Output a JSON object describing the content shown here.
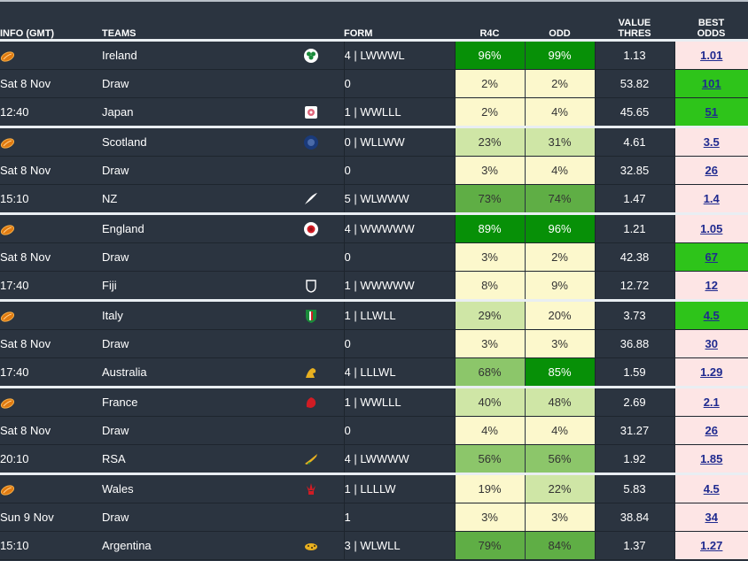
{
  "header": {
    "info": "INFO (GMT)",
    "teams": "TEAMS",
    "form": "FORM",
    "r4c": "R4C",
    "odd": "ODD",
    "value_thres_1": "VALUE",
    "value_thres_2": "THRES",
    "best_odds_1": "BEST",
    "best_odds_2": "ODDS"
  },
  "colors": {
    "background": "#2b3440",
    "best_odds_bg": "#fde5e5",
    "best_highlight": "#2ec41a",
    "pct_light": "#fcf8cc",
    "pct_pale_green": "#cfe6a6",
    "pct_mid_green": "#8cc66a",
    "pct_green": "#5fae45",
    "pct_dark_green": "#079007",
    "link": "#1f2a8f"
  },
  "matches": [
    {
      "date": "Sat 8 Nov",
      "time": "12:40",
      "rows": [
        {
          "team": "Ireland",
          "crest": "ireland-shamrock-icon",
          "form": "4 | LWWWL",
          "r4c": "96%",
          "odd": "99%",
          "value": "1.13",
          "best": "1.01"
        },
        {
          "team": "Draw",
          "crest": "",
          "form": "0",
          "r4c": "2%",
          "odd": "2%",
          "value": "53.82",
          "best": "101"
        },
        {
          "team": "Japan",
          "crest": "japan-cherry-blossom-icon",
          "form": "1 | WWLLL",
          "r4c": "2%",
          "odd": "4%",
          "value": "45.65",
          "best": "51"
        }
      ]
    },
    {
      "date": "Sat 8 Nov",
      "time": "15:10",
      "rows": [
        {
          "team": "Scotland",
          "crest": "scotland-thistle-icon",
          "form": "0 | WLLWW",
          "r4c": "23%",
          "odd": "31%",
          "value": "4.61",
          "best": "3.5"
        },
        {
          "team": "Draw",
          "crest": "",
          "form": "0",
          "r4c": "3%",
          "odd": "4%",
          "value": "32.85",
          "best": "26"
        },
        {
          "team": "NZ",
          "crest": "nz-silver-fern-icon",
          "form": "5 | WLWWW",
          "r4c": "73%",
          "odd": "74%",
          "value": "1.47",
          "best": "1.4"
        }
      ]
    },
    {
      "date": "Sat 8 Nov",
      "time": "17:40",
      "rows": [
        {
          "team": "England",
          "crest": "england-rose-icon",
          "form": "4 | WWWWW",
          "r4c": "89%",
          "odd": "96%",
          "value": "1.21",
          "best": "1.05"
        },
        {
          "team": "Draw",
          "crest": "",
          "form": "0",
          "r4c": "3%",
          "odd": "2%",
          "value": "42.38",
          "best": "67"
        },
        {
          "team": "Fiji",
          "crest": "fiji-crest-icon",
          "form": "1 | WWWWW",
          "r4c": "8%",
          "odd": "9%",
          "value": "12.72",
          "best": "12"
        }
      ]
    },
    {
      "date": "Sat 8 Nov",
      "time": "17:40",
      "rows": [
        {
          "team": "Italy",
          "crest": "italy-crest-icon",
          "form": "1 | LLWLL",
          "r4c": "29%",
          "odd": "20%",
          "value": "3.73",
          "best": "4.5"
        },
        {
          "team": "Draw",
          "crest": "",
          "form": "0",
          "r4c": "3%",
          "odd": "3%",
          "value": "36.88",
          "best": "30"
        },
        {
          "team": "Australia",
          "crest": "australia-wallaby-icon",
          "form": "4 | LLLWL",
          "r4c": "68%",
          "odd": "85%",
          "value": "1.59",
          "best": "1.29"
        }
      ]
    },
    {
      "date": "Sat 8 Nov",
      "time": "20:10",
      "rows": [
        {
          "team": "France",
          "crest": "france-rooster-icon",
          "form": "1 | WWLLL",
          "r4c": "40%",
          "odd": "48%",
          "value": "2.69",
          "best": "2.1"
        },
        {
          "team": "Draw",
          "crest": "",
          "form": "0",
          "r4c": "4%",
          "odd": "4%",
          "value": "31.27",
          "best": "26"
        },
        {
          "team": "RSA",
          "crest": "rsa-springbok-icon",
          "form": "4 | LWWWW",
          "r4c": "56%",
          "odd": "56%",
          "value": "1.92",
          "best": "1.85"
        }
      ]
    },
    {
      "date": "Sun 9 Nov",
      "time": "15:10",
      "rows": [
        {
          "team": "Wales",
          "crest": "wales-feathers-icon",
          "form": "1 | LLLLW",
          "r4c": "19%",
          "odd": "22%",
          "value": "5.83",
          "best": "4.5"
        },
        {
          "team": "Draw",
          "crest": "",
          "form": "1",
          "r4c": "3%",
          "odd": "3%",
          "value": "38.84",
          "best": "34"
        },
        {
          "team": "Argentina",
          "crest": "argentina-jaguar-icon",
          "form": "3 | WLWLL",
          "r4c": "79%",
          "odd": "84%",
          "value": "1.37",
          "best": "1.27"
        }
      ]
    }
  ]
}
